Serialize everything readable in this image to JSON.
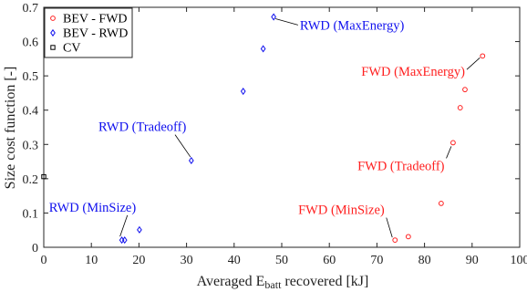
{
  "chart_data": {
    "type": "scatter",
    "xlabel": {
      "main": "Averaged E",
      "sub": "batt",
      "rest": " recovered [kJ]"
    },
    "ylabel": "Size cost function [-]",
    "xlim": [
      0,
      100
    ],
    "ylim": [
      0,
      0.7
    ],
    "xticks": [
      "0",
      "10",
      "20",
      "30",
      "40",
      "50",
      "60",
      "70",
      "80",
      "90",
      "100"
    ],
    "yticks": [
      "0",
      "0.1",
      "0.2",
      "0.3",
      "0.4",
      "0.5",
      "0.6",
      "0.7"
    ],
    "grid": false,
    "legend_position": "top-left",
    "series": [
      {
        "name": "BEV - FWD",
        "marker": "circle",
        "color": "#ff2020",
        "points": [
          {
            "x": 73.8,
            "y": 0.021
          },
          {
            "x": 76.6,
            "y": 0.031
          },
          {
            "x": 83.5,
            "y": 0.128
          },
          {
            "x": 86.0,
            "y": 0.305
          },
          {
            "x": 87.5,
            "y": 0.407
          },
          {
            "x": 88.5,
            "y": 0.46
          },
          {
            "x": 92.2,
            "y": 0.558
          }
        ]
      },
      {
        "name": "BEV - RWD",
        "marker": "diamond",
        "color": "#1010ee",
        "points": [
          {
            "x": 16.4,
            "y": 0.021
          },
          {
            "x": 17.0,
            "y": 0.021
          },
          {
            "x": 20.1,
            "y": 0.051
          },
          {
            "x": 31.0,
            "y": 0.253
          },
          {
            "x": 41.9,
            "y": 0.455
          },
          {
            "x": 46.1,
            "y": 0.579
          },
          {
            "x": 48.3,
            "y": 0.672
          }
        ]
      },
      {
        "name": "CV",
        "marker": "square",
        "color": "#000000",
        "points": [
          {
            "x": 0,
            "y": 0.206
          }
        ]
      }
    ],
    "annotations": [
      {
        "text": "RWD (MaxEnergy)",
        "color": "#1010ee",
        "at": [
          48.3,
          0.672
        ],
        "text_at": [
          53.8,
          0.635
        ],
        "anchor": "start"
      },
      {
        "text": "RWD (Tradeoff)",
        "color": "#1010ee",
        "at": [
          31.0,
          0.253
        ],
        "text_at": [
          11.5,
          0.339
        ],
        "anchor": "start"
      },
      {
        "text": "RWD (MinSize)",
        "color": "#1010ee",
        "at": [
          16.4,
          0.021
        ],
        "text_at": [
          1.1,
          0.104
        ],
        "anchor": "start"
      },
      {
        "text": "FWD (MaxEnergy)",
        "color": "#ff2020",
        "at": [
          92.2,
          0.558
        ],
        "text_at": [
          88.5,
          0.5
        ],
        "anchor": "end"
      },
      {
        "text": "FWD (Tradeoff)",
        "color": "#ff2020",
        "at": [
          86.0,
          0.305
        ],
        "text_at": [
          84.2,
          0.225
        ],
        "anchor": "end"
      },
      {
        "text": "FWD (MinSize)",
        "color": "#ff2020",
        "at": [
          73.8,
          0.021
        ],
        "text_at": [
          71.6,
          0.097
        ],
        "anchor": "end"
      }
    ]
  }
}
